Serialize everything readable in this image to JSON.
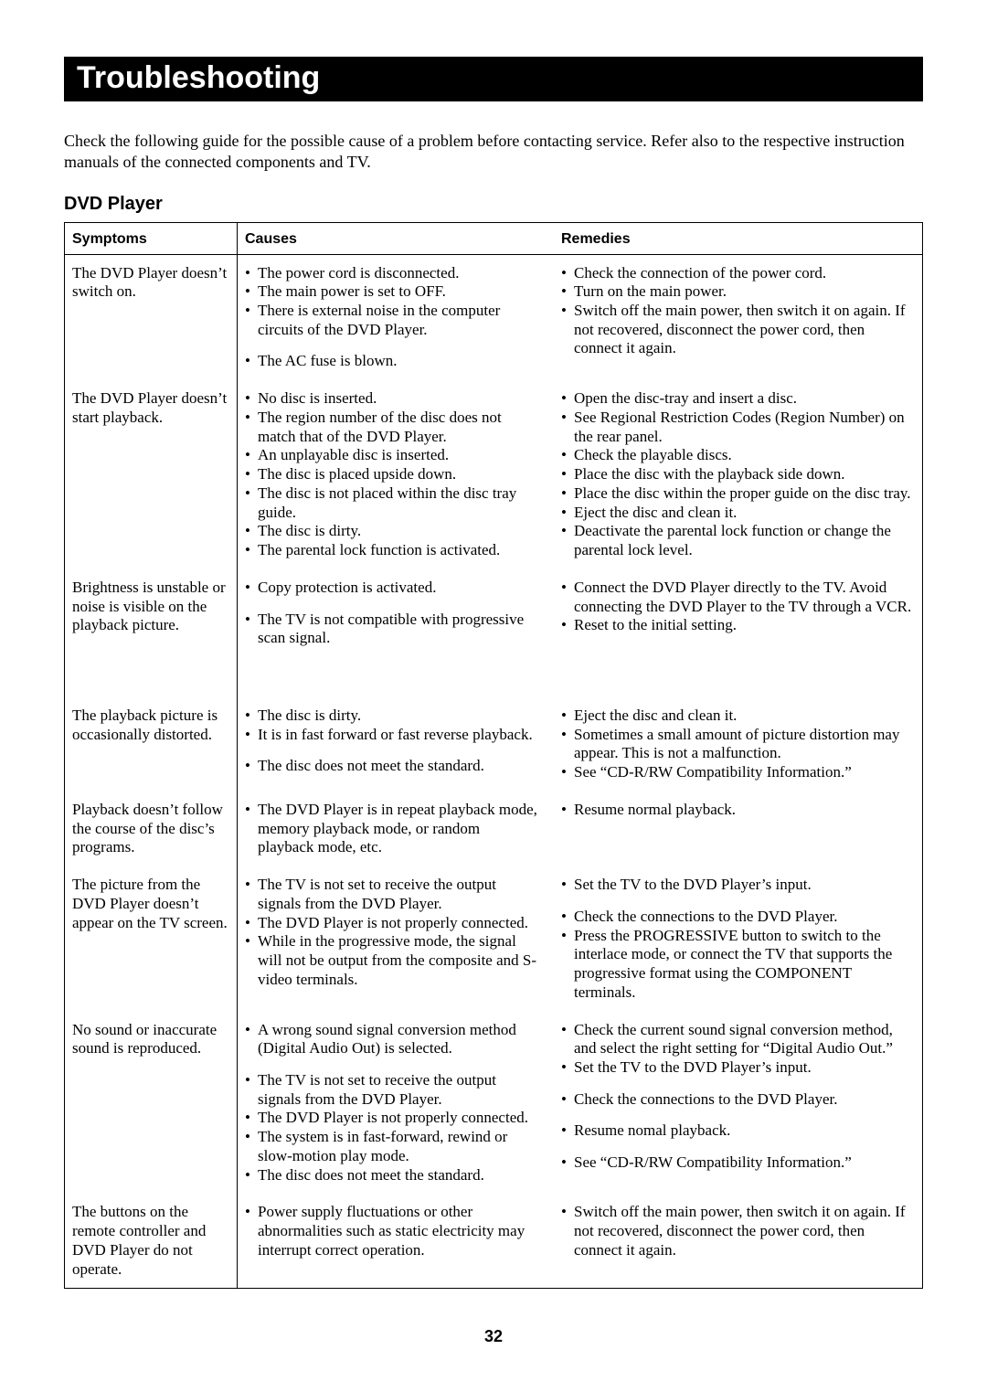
{
  "title": "Troubleshooting",
  "intro": "Check the following guide for the possible cause of a problem before contacting service. Refer also to the respective instruction manuals of the connected components and TV.",
  "section": "DVD Player",
  "columns": [
    "Symptoms",
    "Causes",
    "Remedies"
  ],
  "page_number": "32",
  "rows": [
    {
      "symptom": "The DVD Player doesn’t switch on.",
      "causes": [
        "The power cord is disconnected.",
        "The main power is set to OFF.",
        "There is external noise in the computer circuits of the DVD Player.",
        "The AC fuse is blown."
      ],
      "cause_gaps": [
        3
      ],
      "remedies": [
        "Check the connection of the power cord.",
        "Turn on the main power.",
        "Switch off the main power, then switch it on again. If not recovered, disconnect the power cord, then connect it again."
      ],
      "remedy_gaps": []
    },
    {
      "symptom": "The DVD Player doesn’t start playback.",
      "causes": [
        "No disc is inserted.",
        "The region number of the disc does not match that of the DVD Player.",
        "An unplayable disc is inserted.",
        "The disc is placed upside down.",
        "The disc is not placed within the disc tray guide.",
        "The disc is dirty.",
        "The parental lock function is activated."
      ],
      "cause_gaps": [],
      "remedies": [
        "Open the disc-tray and insert a disc.",
        "See Regional Restriction Codes (Region Number) on the rear panel.",
        "Check the playable discs.",
        "Place the disc with the playback side down.",
        "Place the disc within the proper guide on the disc tray.",
        "Eject the disc and clean it.",
        "Deactivate the parental lock function or change the parental lock level."
      ],
      "remedy_gaps": []
    },
    {
      "symptom": "Brightness is unstable or noise is visible on the playback picture.",
      "causes": [
        "Copy protection is activated.",
        "The TV is not compatible with progressive scan signal."
      ],
      "cause_gaps": [
        1
      ],
      "remedies": [
        "Connect the DVD Player directly to the TV. Avoid connecting the DVD Player to the TV through a VCR.",
        "Reset to the initial setting."
      ],
      "remedy_gaps": [],
      "extra_bottom_pad": 54
    },
    {
      "symptom": "The playback picture is occasionally distorted.",
      "causes": [
        "The disc is dirty.",
        "It is in fast forward or fast reverse playback.",
        "The disc does not meet the standard."
      ],
      "cause_gaps": [
        2
      ],
      "remedies": [
        "Eject the disc and clean it.",
        "Sometimes a small amount of picture distortion may appear. This is not a malfunction.",
        "See “CD-R/RW Compatibility Information.”"
      ],
      "remedy_gaps": []
    },
    {
      "symptom": "Playback doesn’t follow the course of the disc’s programs.",
      "causes": [
        "The DVD Player is in repeat playback mode, memory playback mode, or random playback mode, etc."
      ],
      "cause_gaps": [],
      "remedies": [
        "Resume normal playback."
      ],
      "remedy_gaps": []
    },
    {
      "symptom": "The picture from the DVD Player doesn’t appear on the TV screen.",
      "causes": [
        "The TV is not set to receive the output signals from the DVD Player.",
        "The DVD Player is not properly connected.",
        "While in the progressive mode, the signal will not be output from the composite and S-video terminals."
      ],
      "cause_gaps": [],
      "remedies": [
        "Set the TV to the DVD Player’s input.",
        "Check the connections to the DVD Player.",
        "Press the PROGRESSIVE button to switch to the interlace mode, or connect the TV that supports the progressive format using the COMPONENT terminals."
      ],
      "remedy_gaps": [
        1
      ]
    },
    {
      "symptom": "No sound or inaccurate sound is reproduced.",
      "causes": [
        "A wrong sound signal conversion method (Digital Audio Out) is selected.",
        "The TV is not set to receive the output signals from the DVD Player.",
        "The DVD Player is not properly connected.",
        "The system is in fast-forward, rewind or slow-motion play mode.",
        "The disc does not meet the standard."
      ],
      "cause_gaps": [
        1
      ],
      "remedies": [
        "Check the current sound signal conversion method, and select the right setting for “Digital Audio Out.”",
        "Set the TV to the DVD Player’s input.",
        "Check the connections to the DVD Player.",
        "Resume nomal playback.",
        "See “CD-R/RW Compatibility Information.”"
      ],
      "remedy_gaps": [
        2,
        3,
        4
      ]
    },
    {
      "symptom": "The buttons on the remote controller and DVD Player do not operate.",
      "causes": [
        "Power supply fluctuations or other abnormalities such as static electricity may interrupt correct operation."
      ],
      "cause_gaps": [],
      "remedies": [
        "Switch off the main power, then switch it on again. If not recovered, disconnect the power cord, then connect it again."
      ],
      "remedy_gaps": []
    }
  ]
}
